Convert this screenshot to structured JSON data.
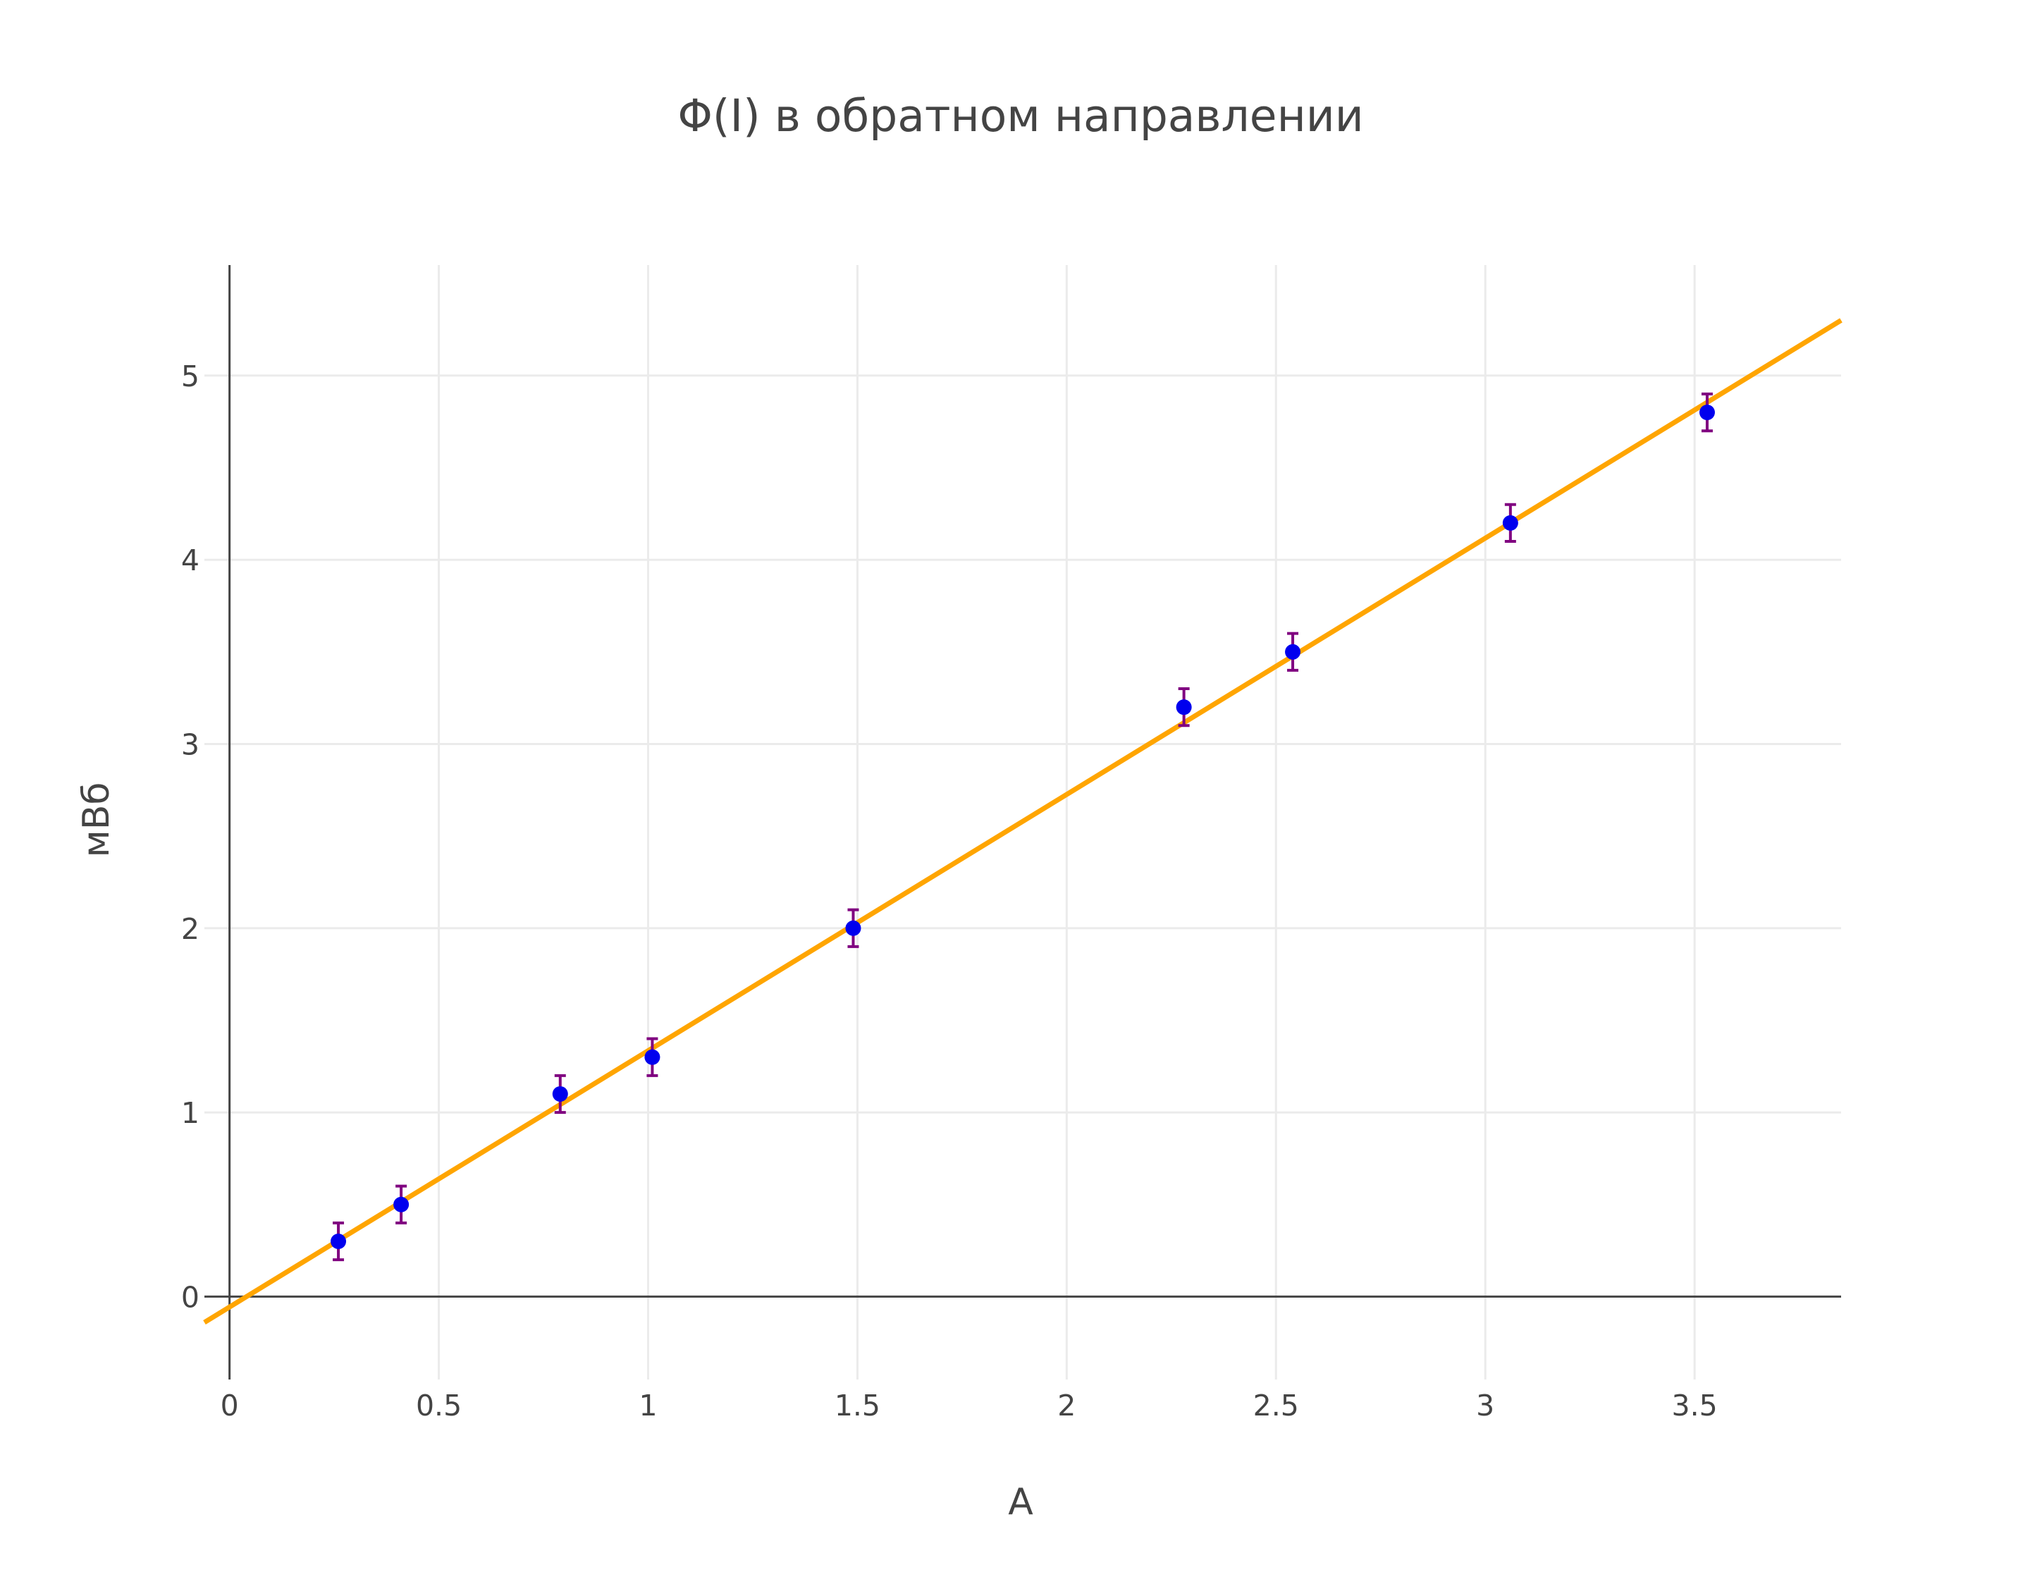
{
  "colors": {
    "background": "#ffffff",
    "grid": "#ebebeb",
    "axis": "#444444",
    "text": "#444444",
    "points": "#0000ee",
    "error_bars": "#800080",
    "fit_line": "#ffa500"
  },
  "chart_data": {
    "type": "scatter",
    "title": "Φ(I) в обратном направлении",
    "xlabel": "А",
    "ylabel": "мВб",
    "xlim": [
      -0.06,
      3.85
    ],
    "ylim": [
      -0.45,
      5.6
    ],
    "x_ticks": [
      0,
      0.5,
      1,
      1.5,
      2,
      2.5,
      3,
      3.5
    ],
    "x_tick_labels": [
      "0",
      "0.5",
      "1",
      "1.5",
      "2",
      "2.5",
      "3",
      "3.5"
    ],
    "y_ticks": [
      0,
      1,
      2,
      3,
      4,
      5
    ],
    "y_tick_labels": [
      "0",
      "1",
      "2",
      "3",
      "4",
      "5"
    ],
    "grid": true,
    "legend": "none",
    "series": [
      {
        "type": "scatter",
        "marker": "circle",
        "x": [
          0.26,
          0.41,
          0.79,
          1.01,
          1.49,
          2.28,
          2.54,
          3.06,
          3.53
        ],
        "y": [
          0.3,
          0.5,
          1.1,
          1.3,
          2.0,
          3.2,
          3.5,
          4.2,
          4.8
        ],
        "error_y": 0.1
      },
      {
        "type": "line",
        "x": [
          -0.06,
          3.85
        ],
        "y": [
          -0.14,
          5.3
        ]
      }
    ]
  }
}
